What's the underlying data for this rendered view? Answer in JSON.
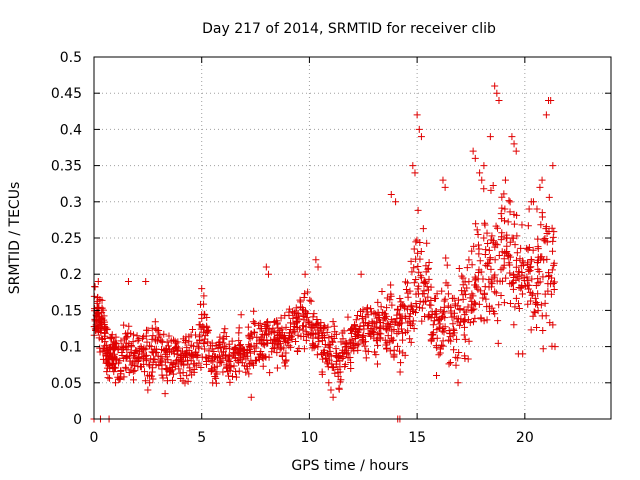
{
  "chart_data": {
    "type": "scatter",
    "title": "Day 217 of 2014, SRMTID for receiver clib",
    "xlabel": "GPS time / hours",
    "ylabel": "SRMTID / TECUs",
    "xlim": [
      0,
      24
    ],
    "ylim": [
      0,
      0.5
    ],
    "x_ticks": [
      0,
      5,
      10,
      15,
      20
    ],
    "y_ticks": [
      0,
      0.05,
      0.1,
      0.15,
      0.2,
      0.25,
      0.3,
      0.35,
      0.4,
      0.45,
      0.5
    ],
    "x_tick_labels": [
      "0",
      "5",
      "10",
      "15",
      "20"
    ],
    "y_tick_labels": [
      "0",
      "0.05",
      "0.1",
      "0.15",
      "0.2",
      "0.25",
      "0.3",
      "0.35",
      "0.4",
      "0.45",
      "0.5"
    ],
    "grid": true,
    "marker": "+",
    "color": "#e00000",
    "series": [
      {
        "name": "SRMTID",
        "x": [
          0.0,
          0.1,
          0.2,
          0.3,
          0.4,
          0.5,
          0.6,
          0.7,
          0.8,
          0.9,
          1.0,
          1.2,
          1.4,
          1.6,
          1.8,
          2.0,
          2.2,
          2.4,
          2.6,
          2.8,
          3.0,
          3.2,
          3.4,
          3.6,
          3.8,
          4.0,
          4.2,
          4.4,
          4.6,
          4.8,
          5.0,
          5.2,
          5.4,
          5.6,
          5.8,
          6.0,
          6.2,
          6.4,
          6.6,
          6.8,
          7.0,
          7.2,
          7.4,
          7.6,
          7.8,
          8.0,
          8.2,
          8.4,
          8.6,
          8.8,
          9.0,
          9.2,
          9.4,
          9.6,
          9.8,
          10.0,
          10.2,
          10.4,
          10.6,
          10.8,
          11.0,
          11.2,
          11.4,
          11.6,
          11.8,
          12.0,
          12.2,
          12.4,
          12.6,
          12.8,
          13.0,
          13.2,
          13.4,
          13.6,
          13.8,
          14.0,
          14.2,
          14.4,
          14.6,
          14.8,
          15.0,
          15.2,
          15.4,
          15.6,
          15.8,
          16.0,
          16.2,
          16.4,
          16.6,
          16.8,
          17.0,
          17.2,
          17.4,
          17.6,
          17.8,
          18.0,
          18.2,
          18.4,
          18.6,
          18.8,
          19.0,
          19.2,
          19.4,
          19.6,
          19.8,
          20.0,
          20.2,
          20.4,
          20.6,
          20.8,
          21.0,
          21.2,
          21.4
        ],
        "y": [
          0.15,
          0.16,
          0.14,
          0.13,
          0.12,
          0.1,
          0.09,
          0.08,
          0.09,
          0.1,
          0.09,
          0.08,
          0.09,
          0.1,
          0.08,
          0.09,
          0.08,
          0.09,
          0.08,
          0.09,
          0.1,
          0.08,
          0.09,
          0.08,
          0.09,
          0.08,
          0.09,
          0.08,
          0.1,
          0.09,
          0.12,
          0.1,
          0.09,
          0.08,
          0.09,
          0.1,
          0.09,
          0.08,
          0.09,
          0.1,
          0.09,
          0.1,
          0.11,
          0.09,
          0.1,
          0.11,
          0.1,
          0.12,
          0.11,
          0.1,
          0.11,
          0.12,
          0.13,
          0.12,
          0.13,
          0.14,
          0.12,
          0.11,
          0.1,
          0.09,
          0.1,
          0.09,
          0.08,
          0.09,
          0.1,
          0.11,
          0.12,
          0.13,
          0.12,
          0.13,
          0.14,
          0.12,
          0.13,
          0.12,
          0.13,
          0.12,
          0.13,
          0.14,
          0.15,
          0.16,
          0.2,
          0.18,
          0.19,
          0.15,
          0.14,
          0.13,
          0.14,
          0.15,
          0.14,
          0.13,
          0.15,
          0.16,
          0.17,
          0.18,
          0.19,
          0.2,
          0.22,
          0.21,
          0.22,
          0.23,
          0.24,
          0.22,
          0.21,
          0.22,
          0.2,
          0.21,
          0.2,
          0.19,
          0.2,
          0.21,
          0.22,
          0.24,
          0.22
        ],
        "spread": [
          0.04,
          0.04,
          0.04,
          0.04,
          0.04,
          0.035,
          0.03,
          0.03,
          0.03,
          0.03,
          0.03,
          0.03,
          0.03,
          0.03,
          0.03,
          0.03,
          0.03,
          0.03,
          0.03,
          0.03,
          0.03,
          0.03,
          0.03,
          0.03,
          0.03,
          0.03,
          0.03,
          0.03,
          0.03,
          0.03,
          0.035,
          0.035,
          0.03,
          0.03,
          0.03,
          0.03,
          0.03,
          0.03,
          0.03,
          0.03,
          0.03,
          0.03,
          0.035,
          0.03,
          0.035,
          0.035,
          0.035,
          0.035,
          0.035,
          0.035,
          0.035,
          0.035,
          0.04,
          0.04,
          0.04,
          0.04,
          0.035,
          0.035,
          0.035,
          0.03,
          0.035,
          0.035,
          0.035,
          0.035,
          0.035,
          0.035,
          0.035,
          0.035,
          0.035,
          0.035,
          0.04,
          0.04,
          0.04,
          0.04,
          0.04,
          0.04,
          0.05,
          0.05,
          0.05,
          0.06,
          0.08,
          0.07,
          0.06,
          0.06,
          0.05,
          0.05,
          0.05,
          0.06,
          0.05,
          0.05,
          0.05,
          0.06,
          0.07,
          0.07,
          0.07,
          0.08,
          0.09,
          0.08,
          0.09,
          0.08,
          0.08,
          0.07,
          0.07,
          0.07,
          0.06,
          0.06,
          0.06,
          0.06,
          0.07,
          0.08,
          0.09,
          0.1,
          0.08
        ],
        "outliers": [
          [
            0.2,
            0.19
          ],
          [
            1.6,
            0.19
          ],
          [
            2.4,
            0.19
          ],
          [
            5.0,
            0.18
          ],
          [
            5.1,
            0.17
          ],
          [
            8.0,
            0.21
          ],
          [
            8.1,
            0.2
          ],
          [
            9.8,
            0.2
          ],
          [
            10.3,
            0.22
          ],
          [
            10.4,
            0.21
          ],
          [
            12.4,
            0.2
          ],
          [
            13.8,
            0.31
          ],
          [
            14.0,
            0.3
          ],
          [
            14.8,
            0.35
          ],
          [
            14.9,
            0.34
          ],
          [
            15.0,
            0.42
          ],
          [
            15.1,
            0.4
          ],
          [
            15.2,
            0.39
          ],
          [
            16.2,
            0.33
          ],
          [
            16.3,
            0.32
          ],
          [
            17.6,
            0.37
          ],
          [
            17.7,
            0.36
          ],
          [
            17.9,
            0.34
          ],
          [
            18.0,
            0.33
          ],
          [
            18.1,
            0.35
          ],
          [
            18.4,
            0.39
          ],
          [
            18.6,
            0.46
          ],
          [
            18.7,
            0.45
          ],
          [
            18.8,
            0.44
          ],
          [
            19.1,
            0.33
          ],
          [
            19.4,
            0.39
          ],
          [
            19.5,
            0.38
          ],
          [
            19.6,
            0.37
          ],
          [
            20.2,
            0.29
          ],
          [
            20.3,
            0.3
          ],
          [
            20.4,
            0.3
          ],
          [
            20.7,
            0.32
          ],
          [
            20.8,
            0.33
          ],
          [
            21.0,
            0.42
          ],
          [
            21.1,
            0.44
          ],
          [
            21.2,
            0.44
          ],
          [
            21.3,
            0.35
          ],
          [
            0.0,
            0.0
          ],
          [
            0.3,
            0.0
          ],
          [
            0.7,
            0.0
          ],
          [
            14.1,
            0.0
          ],
          [
            14.2,
            0.0
          ],
          [
            10.9,
            0.05
          ],
          [
            11.0,
            0.04
          ],
          [
            11.1,
            0.03
          ],
          [
            7.3,
            0.03
          ],
          [
            3.3,
            0.035
          ],
          [
            2.5,
            0.04
          ],
          [
            1.0,
            0.05
          ],
          [
            15.9,
            0.06
          ],
          [
            16.9,
            0.05
          ],
          [
            19.7,
            0.09
          ],
          [
            19.9,
            0.09
          ],
          [
            21.4,
            0.1
          ],
          [
            21.3,
            0.13
          ],
          [
            0.1,
            0.13
          ],
          [
            0.2,
            0.12
          ]
        ]
      }
    ]
  }
}
